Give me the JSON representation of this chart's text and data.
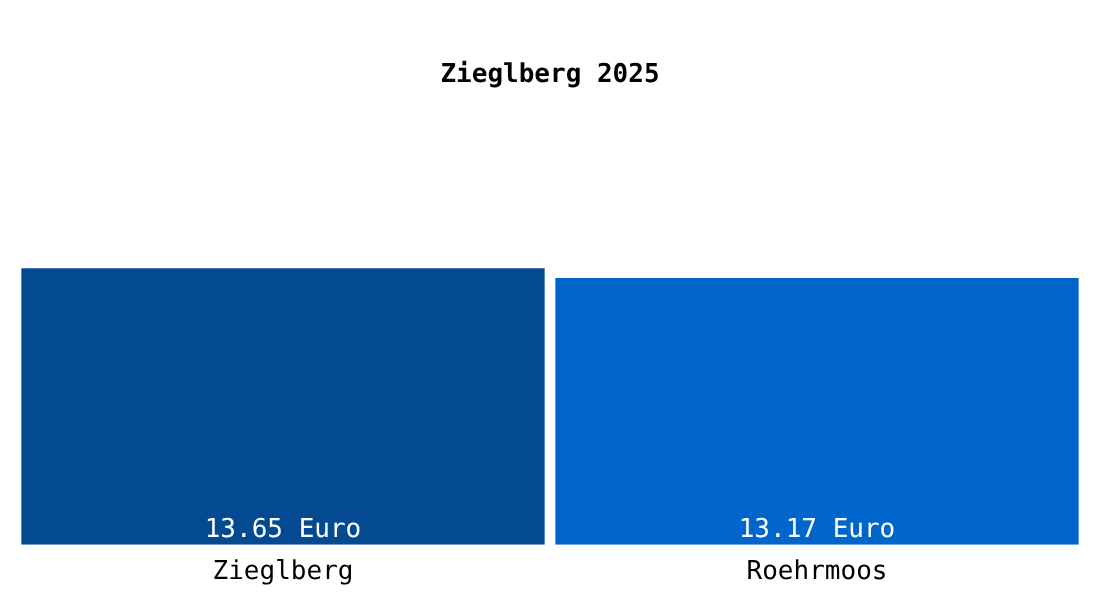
{
  "chart_data": {
    "type": "bar",
    "title": "Zieglberg 2025",
    "categories": [
      "Zieglberg",
      "Roehrmoos"
    ],
    "values": [
      13.65,
      13.17
    ],
    "colors": [
      "#034a92",
      "#0066cc"
    ],
    "value_labels": [
      "13.65 Euro",
      "13.17 Euro"
    ],
    "tick_labels": "x",
    "grid": false,
    "legend": false
  }
}
